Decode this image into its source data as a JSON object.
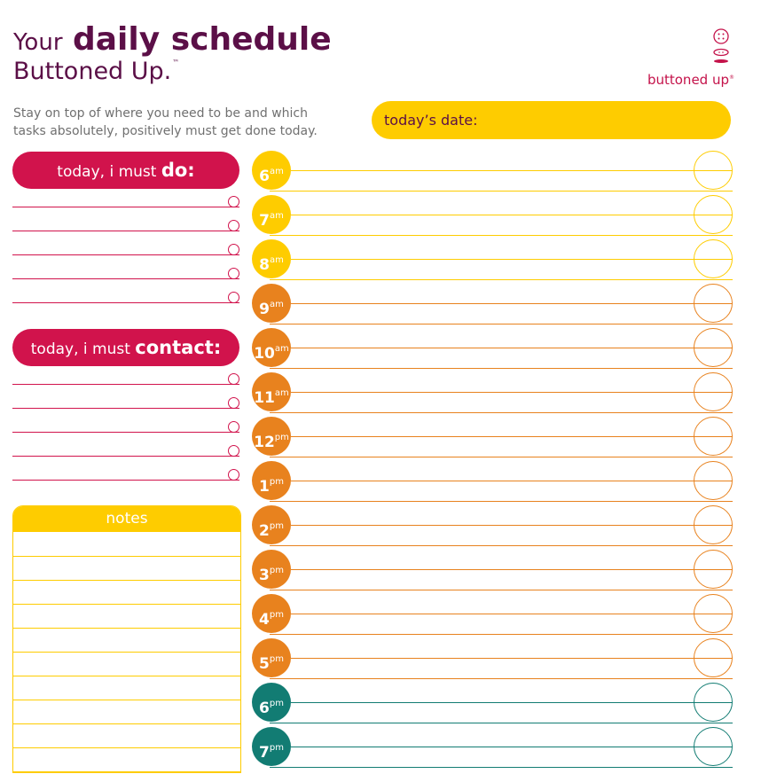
{
  "header": {
    "title_small": "Your",
    "title_big": "daily schedule",
    "title_line2": "Buttoned Up.",
    "tm": "™",
    "subtitle": "Stay on top of where you need to be and which tasks absolutely, positively must get done today.",
    "brand": "buttoned up",
    "brand_mark": "®"
  },
  "date_label": "today’s date:",
  "do_section": {
    "label_plain": "today, i must ",
    "label_bold": "do:",
    "rows": 5
  },
  "contact_section": {
    "label_plain": "today, i must ",
    "label_bold": "contact:",
    "rows": 5
  },
  "notes": {
    "label": "notes"
  },
  "hours": [
    {
      "hour": "6",
      "suffix": "am"
    },
    {
      "hour": "7",
      "suffix": "am"
    },
    {
      "hour": "8",
      "suffix": "am"
    },
    {
      "hour": "9",
      "suffix": "am"
    },
    {
      "hour": "10",
      "suffix": "am"
    },
    {
      "hour": "11",
      "suffix": "am"
    },
    {
      "hour": "12",
      "suffix": "pm"
    },
    {
      "hour": "1",
      "suffix": "pm"
    },
    {
      "hour": "2",
      "suffix": "pm"
    },
    {
      "hour": "3",
      "suffix": "pm"
    },
    {
      "hour": "4",
      "suffix": "pm"
    },
    {
      "hour": "5",
      "suffix": "pm"
    },
    {
      "hour": "6",
      "suffix": "pm"
    },
    {
      "hour": "7",
      "suffix": "pm"
    }
  ],
  "colors": {
    "plum": "#5b0f47",
    "magenta": "#d1134c",
    "yellow": "#fecc00",
    "orange": "#e8821e",
    "teal": "#127c73"
  }
}
